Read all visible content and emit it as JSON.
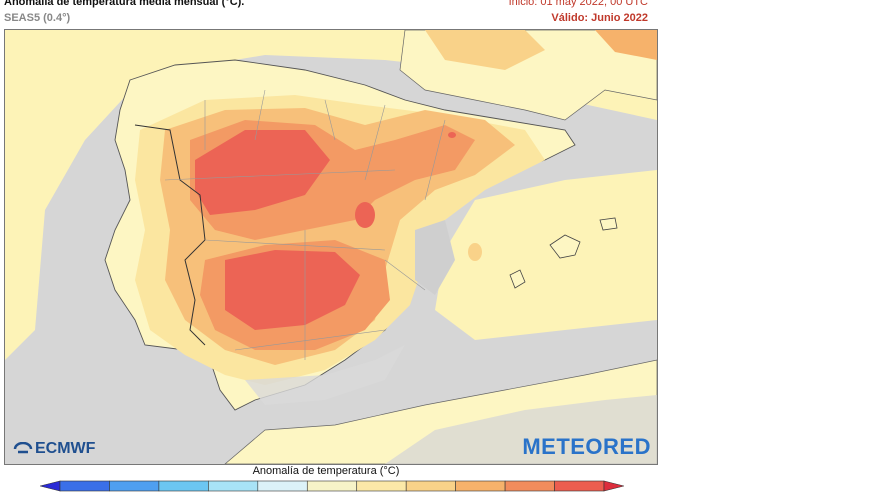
{
  "header": {
    "title": "Anomalía de temperatura media mensual (°C).",
    "subtitle": "SEAS5 (0.4°)",
    "start": "Inicio: 01 may 2022, 00 UTC",
    "valid": "Válido: Junio 2022"
  },
  "logos": {
    "left": "ECMWF",
    "right": "METEORED"
  },
  "legend": {
    "title": "Anomalía de temperatura (°C)",
    "colors": [
      "#2a2ad6",
      "#3a6fe8",
      "#4f9ff0",
      "#6cc6f2",
      "#a8e3f6",
      "#dcf2f8",
      "#f6f3c8",
      "#fbe8a8",
      "#f9d289",
      "#f6b26b",
      "#f28c5c",
      "#ec5d4f",
      "#dc2e3d"
    ]
  },
  "map_colors": {
    "sea": "#d6d6d6",
    "land_neutral": "#fdf6c3",
    "anomaly_low": "#fbe6a0",
    "anomaly_mid": "#f7c07a",
    "anomaly_high": "#f39a64",
    "anomaly_max": "#ec6455"
  }
}
